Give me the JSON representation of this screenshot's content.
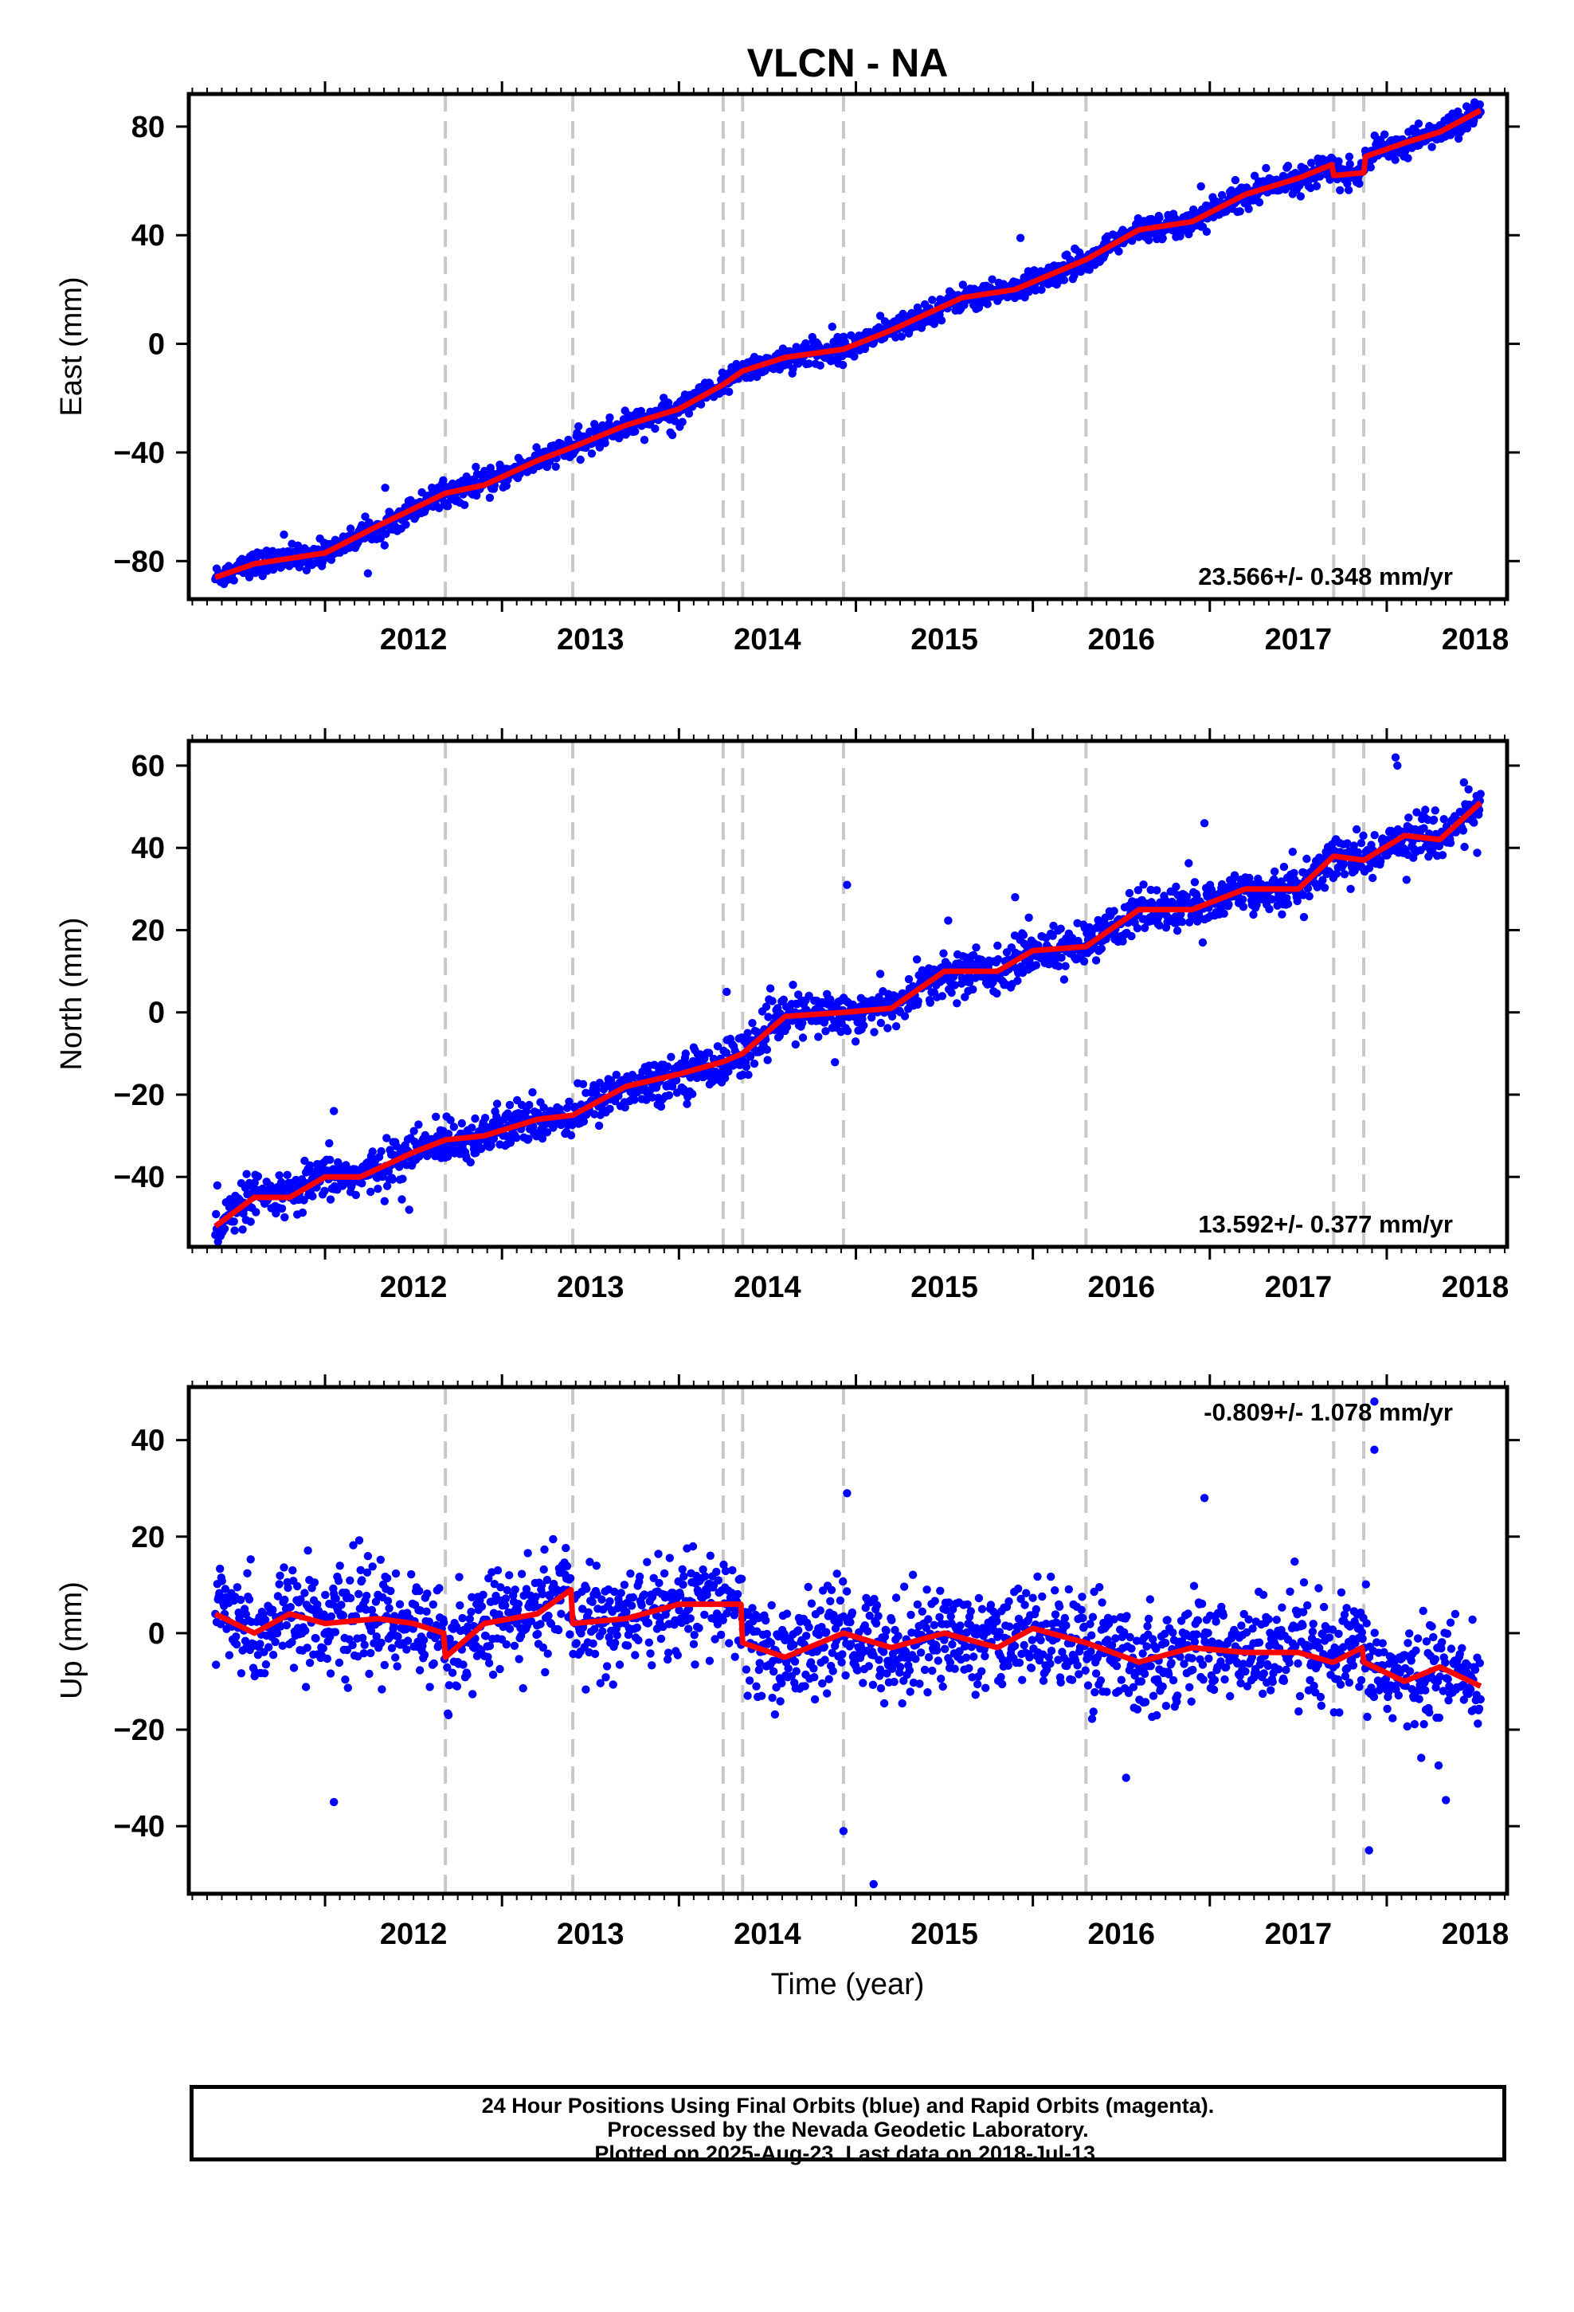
{
  "title": "VLCN - NA",
  "xlabel": "Time (year)",
  "caption": {
    "line1": "24 Hour Positions Using Final Orbits (blue) and Rapid Orbits (magenta).",
    "line2": "Processed by the Nevada Geodetic Laboratory.",
    "line3": "Plotted on 2025-Aug-23. Last data on 2018-Jul-13."
  },
  "colors": {
    "final_orbits": "#0000ff",
    "model": "#ff0000",
    "offsets": "#c8c8c8",
    "axes": "#000000"
  },
  "chart_data": [
    {
      "type": "scatter",
      "ylabel": "East (mm)",
      "xlim": [
        2011.23,
        2018.68
      ],
      "ylim": [
        -94,
        92
      ],
      "xticks": [
        2012,
        2013,
        2014,
        2015,
        2016,
        2017,
        2018
      ],
      "yticks": [
        -80,
        -40,
        0,
        40,
        80
      ],
      "rate_label": "23.566+/- 0.348 mm/yr",
      "rate_position": "bottom-right",
      "offset_lines": [
        2012.68,
        2013.4,
        2014.25,
        2014.36,
        2014.93,
        2016.3,
        2017.7,
        2017.87
      ],
      "trend": {
        "x": [
          2011.38,
          2011.6,
          2011.8,
          2012.0,
          2012.3,
          2012.68,
          2012.9,
          2013.2,
          2013.4,
          2013.7,
          2014.0,
          2014.25,
          2014.36,
          2014.6,
          2014.93,
          2015.2,
          2015.6,
          2015.9,
          2016.3,
          2016.6,
          2016.9,
          2017.2,
          2017.5,
          2017.69,
          2017.7,
          2017.87,
          2017.88,
          2018.1,
          2018.3,
          2018.53
        ],
        "y": [
          -86,
          -81,
          -79,
          -77,
          -67,
          -55,
          -52,
          -43,
          -38,
          -30,
          -24,
          -15,
          -10,
          -5,
          -2,
          5,
          17,
          20,
          31,
          42,
          45,
          55,
          61,
          66,
          62,
          63,
          69,
          74,
          78,
          86
        ]
      },
      "outliers": [
        {
          "x": 2015.93,
          "y": 39
        },
        {
          "x": 2016.95,
          "y": 58
        }
      ]
    },
    {
      "type": "scatter",
      "ylabel": "North (mm)",
      "xlim": [
        2011.23,
        2018.68
      ],
      "ylim": [
        -57,
        66
      ],
      "xticks": [
        2012,
        2013,
        2014,
        2015,
        2016,
        2017,
        2018
      ],
      "yticks": [
        -40,
        -20,
        0,
        20,
        40,
        60
      ],
      "rate_label": "13.592+/- 0.377 mm/yr",
      "rate_position": "bottom-right",
      "offset_lines": [
        2012.68,
        2013.4,
        2014.25,
        2014.36,
        2014.93,
        2016.3,
        2017.7,
        2017.87
      ],
      "trend": {
        "x": [
          2011.38,
          2011.6,
          2011.8,
          2012.0,
          2012.2,
          2012.5,
          2012.68,
          2012.9,
          2013.2,
          2013.4,
          2013.7,
          2014.0,
          2014.25,
          2014.36,
          2014.6,
          2014.93,
          2015.2,
          2015.5,
          2015.8,
          2016.0,
          2016.3,
          2016.6,
          2016.9,
          2017.2,
          2017.5,
          2017.7,
          2017.87,
          2018.1,
          2018.3,
          2018.53
        ],
        "y": [
          -52,
          -45,
          -45,
          -40,
          -40,
          -34,
          -31,
          -30,
          -26,
          -25,
          -18,
          -15,
          -12,
          -10,
          -1,
          0,
          1,
          10,
          10,
          15,
          16,
          25,
          25,
          30,
          30,
          38,
          37,
          43,
          42,
          51
        ]
      },
      "outliers": [
        {
          "x": 2012.05,
          "y": -24
        },
        {
          "x": 2014.27,
          "y": 5
        },
        {
          "x": 2014.95,
          "y": 31
        },
        {
          "x": 2015.9,
          "y": 28
        },
        {
          "x": 2016.97,
          "y": 46
        },
        {
          "x": 2018.05,
          "y": 62
        },
        {
          "x": 2018.06,
          "y": 60
        }
      ]
    },
    {
      "type": "scatter",
      "ylabel": "Up (mm)",
      "xlim": [
        2011.23,
        2018.68
      ],
      "ylim": [
        -54,
        51
      ],
      "xticks": [
        2012,
        2013,
        2014,
        2015,
        2016,
        2017,
        2018
      ],
      "yticks": [
        -40,
        -20,
        0,
        20,
        40
      ],
      "rate_label": "-0.809+/- 1.078 mm/yr",
      "rate_position": "top-right",
      "offset_lines": [
        2012.68,
        2013.4,
        2014.25,
        2014.36,
        2014.93,
        2016.3,
        2017.7,
        2017.87
      ],
      "trend": {
        "x": [
          2011.38,
          2011.6,
          2011.8,
          2012.0,
          2012.3,
          2012.5,
          2012.67,
          2012.68,
          2012.9,
          2013.2,
          2013.39,
          2013.4,
          2013.7,
          2014.0,
          2014.25,
          2014.35,
          2014.36,
          2014.6,
          2014.93,
          2015.2,
          2015.5,
          2015.8,
          2016.0,
          2016.3,
          2016.6,
          2016.9,
          2017.2,
          2017.5,
          2017.69,
          2017.7,
          2017.86,
          2017.87,
          2018.1,
          2018.3,
          2018.53
        ],
        "y": [
          4,
          0,
          4,
          2,
          3,
          2,
          0,
          -5,
          2,
          4,
          9,
          2,
          3,
          6,
          6,
          6,
          -2,
          -5,
          0,
          -3,
          0,
          -3,
          1,
          -2,
          -6,
          -3,
          -4,
          -4,
          -6,
          -6,
          -3,
          -6,
          -10,
          -7,
          -11
        ]
      },
      "outliers": [
        {
          "x": 2012.05,
          "y": -35
        },
        {
          "x": 2014.95,
          "y": 29
        },
        {
          "x": 2015.1,
          "y": -52
        },
        {
          "x": 2014.93,
          "y": -41
        },
        {
          "x": 2016.97,
          "y": 28
        },
        {
          "x": 2017.93,
          "y": 48
        },
        {
          "x": 2017.93,
          "y": 38
        },
        {
          "x": 2017.9,
          "y": -45
        }
      ]
    }
  ]
}
